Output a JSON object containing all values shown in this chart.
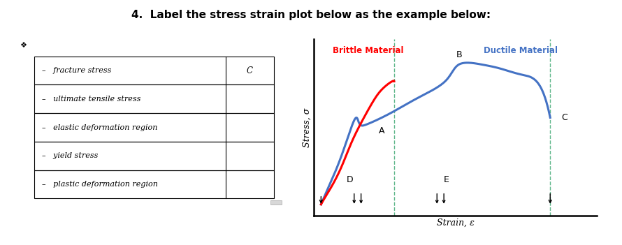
{
  "title": "4.  Label the stress strain plot below as the example below:",
  "title_fontsize": 11,
  "table_rows": [
    [
      "–   fracture stress",
      "C"
    ],
    [
      "–   ultimate tensile stress",
      ""
    ],
    [
      "–   elastic deformation region",
      ""
    ],
    [
      "–   yield stress",
      ""
    ],
    [
      "–   plastic deformation region",
      ""
    ]
  ],
  "brittle_color": "#FF0000",
  "ductile_color": "#4472C4",
  "dashed_color": "#4CAF7D",
  "label_color_brittle": "#FF0000",
  "label_color_ductile": "#4472C4",
  "label_B": "B",
  "label_A": "A",
  "label_C": "C",
  "label_D": "D",
  "label_E": "E",
  "label_brittle": "Brittle Material",
  "label_ductile": "Ductile Material",
  "xlabel": "Strain, ε",
  "ylabel": "Stress, σ",
  "bg_color": "#FFFFFF"
}
